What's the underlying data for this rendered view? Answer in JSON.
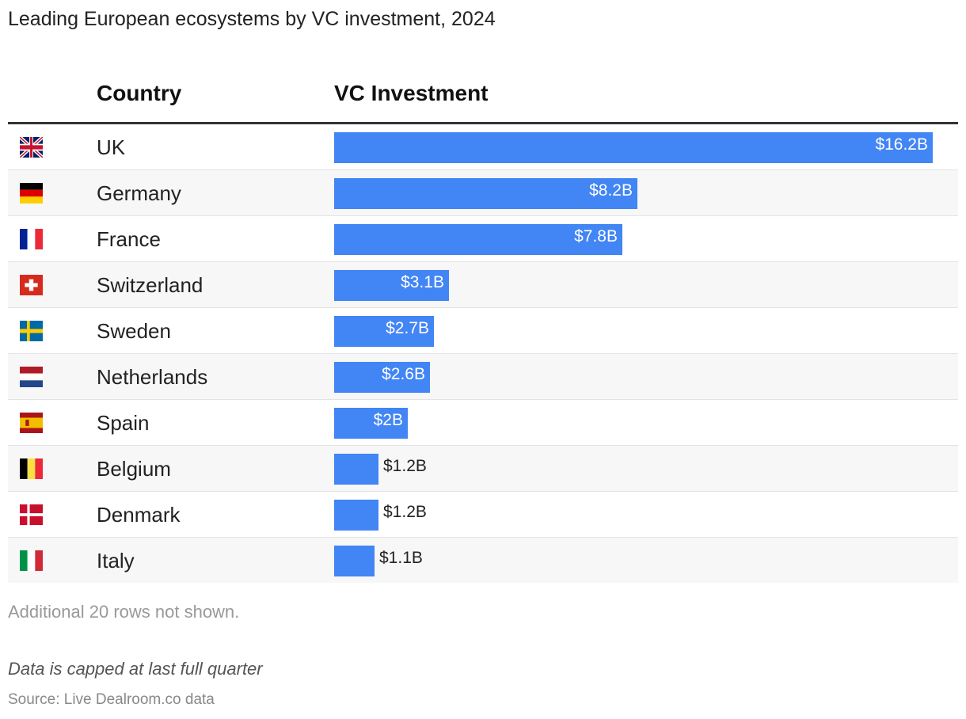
{
  "title": "Leading European ecosystems by VC investment, 2024",
  "columns": {
    "country": "Country",
    "value": "VC Investment"
  },
  "chart_data": {
    "type": "bar",
    "orientation": "horizontal",
    "title": "Leading European ecosystems by VC investment, 2024",
    "categories": [
      "UK",
      "Germany",
      "France",
      "Switzerland",
      "Sweden",
      "Netherlands",
      "Spain",
      "Belgium",
      "Denmark",
      "Italy"
    ],
    "values": [
      16.2,
      8.2,
      7.8,
      3.1,
      2.7,
      2.6,
      2.0,
      1.2,
      1.2,
      1.1
    ],
    "value_labels": [
      "$16.2B",
      "$8.2B",
      "$7.8B",
      "$3.1B",
      "$2.7B",
      "$2.6B",
      "$2B",
      "$1.2B",
      "$1.2B",
      "$1.1B"
    ],
    "xlim": [
      0,
      16.2
    ],
    "bar_color": "#4285f4",
    "grid": false
  },
  "rows": [
    {
      "country": "UK",
      "flag": "uk-flag-icon",
      "value_label": "$16.2B"
    },
    {
      "country": "Germany",
      "flag": "germany-flag-icon",
      "value_label": "$8.2B"
    },
    {
      "country": "France",
      "flag": "france-flag-icon",
      "value_label": "$7.8B"
    },
    {
      "country": "Switzerland",
      "flag": "switzerland-flag-icon",
      "value_label": "$3.1B"
    },
    {
      "country": "Sweden",
      "flag": "sweden-flag-icon",
      "value_label": "$2.7B"
    },
    {
      "country": "Netherlands",
      "flag": "netherlands-flag-icon",
      "value_label": "$2.6B"
    },
    {
      "country": "Spain",
      "flag": "spain-flag-icon",
      "value_label": "$2B"
    },
    {
      "country": "Belgium",
      "flag": "belgium-flag-icon",
      "value_label": "$1.2B"
    },
    {
      "country": "Denmark",
      "flag": "denmark-flag-icon",
      "value_label": "$1.2B"
    },
    {
      "country": "Italy",
      "flag": "italy-flag-icon",
      "value_label": "$1.1B"
    }
  ],
  "more_rows_text": "Additional 20 rows not shown.",
  "note": "Data is capped at last full quarter",
  "source": "Source: Live Dealroom.co data"
}
